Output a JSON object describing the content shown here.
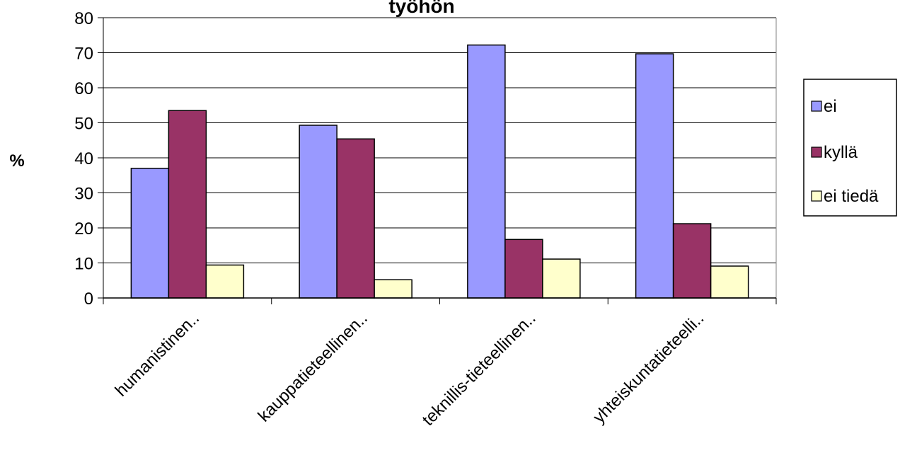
{
  "chart_data": {
    "type": "bar",
    "title": "työhön",
    "xlabel": "",
    "ylabel": "%",
    "ylim": [
      0,
      80
    ],
    "yticks": [
      "0",
      "10",
      "20",
      "30",
      "40",
      "50",
      "60",
      "70",
      "80"
    ],
    "grid": true,
    "legend_position": "right",
    "categories": [
      "humanistinen..",
      "kauppatieteellinen..",
      "teknillis-tieteellinen..",
      "yhteiskuntatieteelli.."
    ],
    "series": [
      {
        "name": "ei",
        "color": "#9999ff",
        "values": [
          37,
          49.3,
          72.2,
          69.7
        ]
      },
      {
        "name": "kyllä",
        "color": "#993366",
        "values": [
          53.5,
          45.4,
          16.7,
          21.2
        ]
      },
      {
        "name": "ei tiedä",
        "color": "#ffffcc",
        "values": [
          9.4,
          5.2,
          11.1,
          9.1
        ]
      }
    ]
  }
}
